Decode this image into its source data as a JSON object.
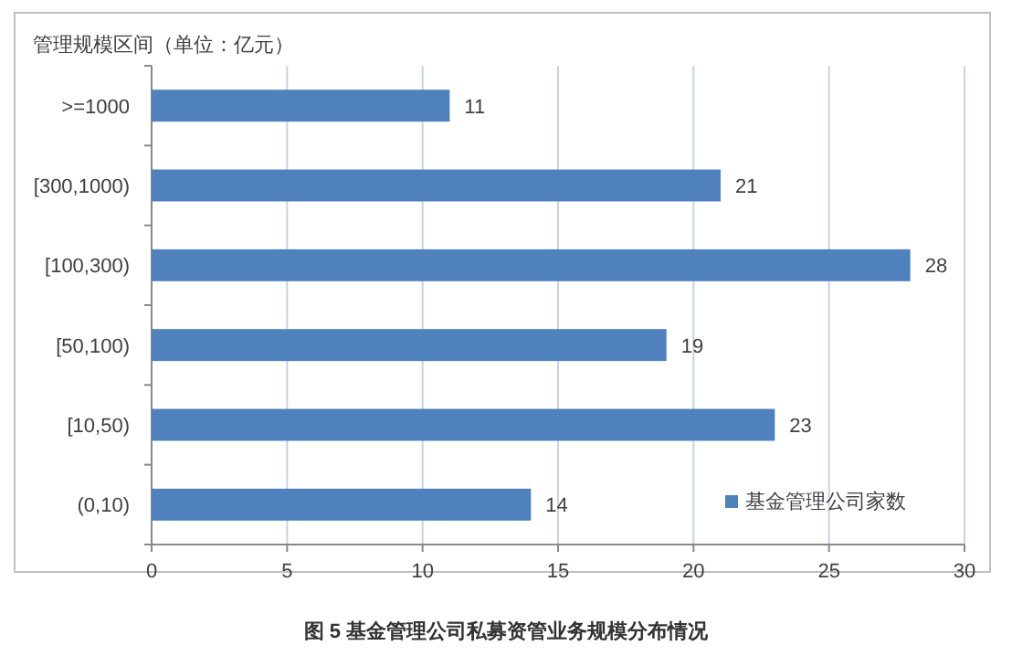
{
  "chart_data": {
    "type": "bar",
    "orientation": "horizontal",
    "title": "图 5 基金管理公司私募资管业务规模分布情况",
    "ylabel": "管理规模区间（单位：亿元）",
    "categories": [
      ">=1000",
      "[300,1000)",
      "[100,300)",
      "[50,100)",
      "[10,50)",
      "(0,10)"
    ],
    "series": [
      {
        "name": "基金管理公司家数",
        "color": "#4f81bd",
        "values": [
          11,
          21,
          28,
          19,
          23,
          14
        ]
      }
    ],
    "xlim": [
      0,
      30
    ],
    "xticks": [
      0,
      5,
      10,
      15,
      20,
      25,
      30
    ],
    "grid": "x",
    "legend": "bottom right",
    "data_labels": true
  }
}
